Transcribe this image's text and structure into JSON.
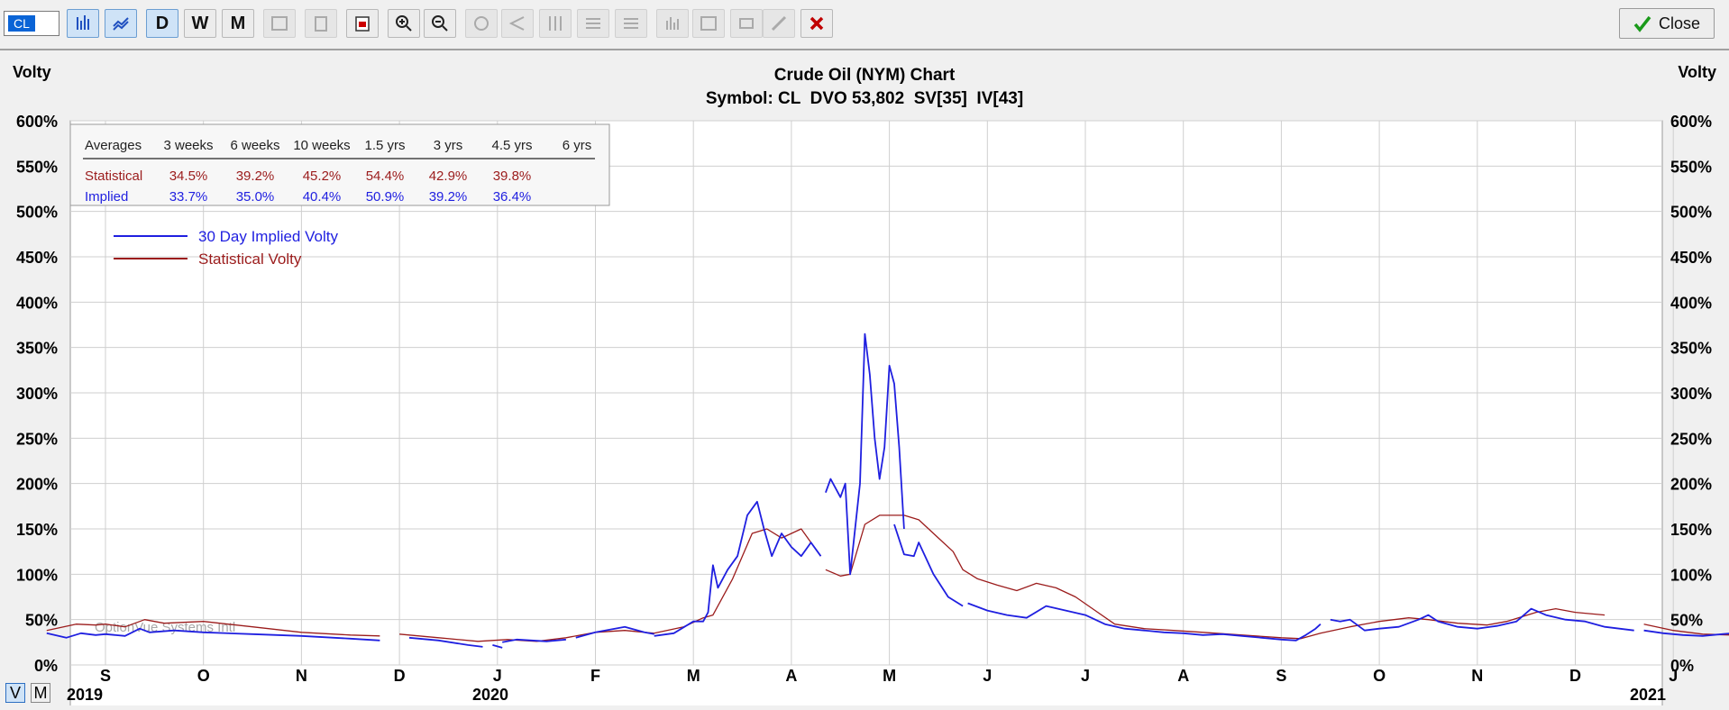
{
  "toolbar": {
    "symbol": "CL",
    "period_buttons": [
      "D",
      "W",
      "M"
    ],
    "close_label": "Close"
  },
  "chart_data": {
    "type": "line",
    "title": "Crude Oil (NYM) Chart",
    "subtitle": "Symbol: CL  DVO 53,802  SV[35]  IV[43]",
    "ylabel_left": "Volty",
    "ylabel_right": "Volty",
    "ylim": [
      0,
      600
    ],
    "y_ticks": [
      "0%",
      "50%",
      "100%",
      "150%",
      "200%",
      "250%",
      "300%",
      "350%",
      "400%",
      "450%",
      "500%",
      "550%",
      "600%"
    ],
    "x_month_labels": [
      "S",
      "O",
      "N",
      "D",
      "J",
      "F",
      "M",
      "A",
      "M",
      "J",
      "J",
      "A",
      "S",
      "O",
      "N",
      "D",
      "J"
    ],
    "x_year_labels": [
      "2019",
      "2020",
      "2021"
    ],
    "grid": true,
    "legend_placement": "top-left",
    "watermark": "OptionVue Systems Intl",
    "averages_table": {
      "headers": [
        "Averages",
        "3 weeks",
        "6 weeks",
        "10 weeks",
        "1.5 yrs",
        "3 yrs",
        "4.5 yrs",
        "6 yrs"
      ],
      "rows": [
        {
          "label": "Statistical",
          "values": [
            "34.5%",
            "39.2%",
            "45.2%",
            "54.4%",
            "42.9%",
            "39.8%",
            ""
          ],
          "color": "#9b1c1c"
        },
        {
          "label": "Implied",
          "values": [
            "33.7%",
            "35.0%",
            "40.4%",
            "50.9%",
            "39.2%",
            "36.4%",
            ""
          ],
          "color": "#1f1fe0"
        }
      ]
    },
    "series": [
      {
        "name": "30 Day Implied Volty",
        "color": "#1f1fe0",
        "segments": [
          [
            [
              -0.6,
              35
            ],
            [
              -0.4,
              30
            ],
            [
              -0.25,
              35
            ],
            [
              -0.1,
              33
            ],
            [
              0,
              34
            ],
            [
              0.2,
              32
            ],
            [
              0.35,
              40
            ],
            [
              0.45,
              36
            ],
            [
              0.7,
              38
            ],
            [
              1,
              36
            ],
            [
              1.5,
              34
            ],
            [
              2,
              32
            ],
            [
              2.5,
              29
            ],
            [
              2.8,
              27
            ]
          ],
          [
            [
              3.1,
              30
            ],
            [
              3.4,
              27
            ],
            [
              3.7,
              22
            ],
            [
              3.85,
              20
            ]
          ],
          [
            [
              3.95,
              22
            ],
            [
              4.05,
              19
            ]
          ],
          [
            [
              4.05,
              25
            ],
            [
              4.2,
              28
            ],
            [
              4.5,
              26
            ],
            [
              4.7,
              28
            ]
          ],
          [
            [
              4.8,
              30
            ],
            [
              5.0,
              36
            ],
            [
              5.2,
              40
            ],
            [
              5.3,
              42
            ],
            [
              5.5,
              36
            ],
            [
              5.6,
              34
            ]
          ],
          [
            [
              5.6,
              32
            ],
            [
              5.8,
              35
            ],
            [
              6.0,
              48
            ],
            [
              6.1,
              48
            ],
            [
              6.15,
              58
            ],
            [
              6.2,
              110
            ],
            [
              6.25,
              85
            ],
            [
              6.35,
              105
            ],
            [
              6.45,
              120
            ],
            [
              6.55,
              165
            ],
            [
              6.65,
              180
            ],
            [
              6.72,
              150
            ],
            [
              6.8,
              120
            ],
            [
              6.9,
              145
            ],
            [
              7.0,
              130
            ],
            [
              7.1,
              120
            ],
            [
              7.2,
              135
            ],
            [
              7.3,
              120
            ]
          ],
          [
            [
              7.35,
              190
            ],
            [
              7.4,
              205
            ],
            [
              7.5,
              185
            ],
            [
              7.55,
              200
            ],
            [
              7.6,
              100
            ],
            [
              7.7,
              200
            ],
            [
              7.75,
              365
            ],
            [
              7.8,
              320
            ],
            [
              7.85,
              250
            ],
            [
              7.9,
              205
            ],
            [
              7.95,
              240
            ],
            [
              8.0,
              330
            ],
            [
              8.05,
              310
            ],
            [
              8.1,
              240
            ],
            [
              8.15,
              150
            ]
          ],
          [
            [
              8.05,
              155
            ],
            [
              8.15,
              122
            ],
            [
              8.25,
              120
            ],
            [
              8.3,
              135
            ],
            [
              8.45,
              100
            ],
            [
              8.6,
              75
            ],
            [
              8.75,
              65
            ]
          ],
          [
            [
              8.8,
              68
            ],
            [
              9.0,
              60
            ],
            [
              9.2,
              55
            ],
            [
              9.4,
              52
            ],
            [
              9.6,
              65
            ],
            [
              9.8,
              60
            ],
            [
              10.0,
              55
            ],
            [
              10.2,
              45
            ],
            [
              10.4,
              40
            ],
            [
              10.6,
              38
            ],
            [
              10.8,
              36
            ],
            [
              11.0,
              35
            ],
            [
              11.2,
              33
            ],
            [
              11.4,
              34
            ],
            [
              11.6,
              32
            ],
            [
              11.8,
              30
            ],
            [
              12.0,
              28
            ],
            [
              12.15,
              27
            ],
            [
              12.25,
              33
            ],
            [
              12.35,
              40
            ],
            [
              12.4,
              45
            ]
          ],
          [
            [
              12.5,
              50
            ],
            [
              12.6,
              48
            ],
            [
              12.7,
              50
            ],
            [
              12.85,
              38
            ],
            [
              13.0,
              40
            ],
            [
              13.2,
              42
            ],
            [
              13.4,
              50
            ],
            [
              13.5,
              55
            ],
            [
              13.6,
              48
            ],
            [
              13.8,
              42
            ],
            [
              14.0,
              40
            ],
            [
              14.2,
              43
            ],
            [
              14.4,
              48
            ],
            [
              14.55,
              62
            ],
            [
              14.7,
              55
            ],
            [
              14.9,
              50
            ],
            [
              15.1,
              48
            ],
            [
              15.3,
              42
            ],
            [
              15.6,
              38
            ]
          ],
          [
            [
              15.7,
              38
            ],
            [
              15.9,
              35
            ],
            [
              16.1,
              33
            ],
            [
              16.3,
              32
            ],
            [
              16.5,
              34
            ],
            [
              16.7,
              36
            ],
            [
              16.85,
              35
            ]
          ],
          [
            [
              16.9,
              33
            ],
            [
              17.0,
              32
            ]
          ]
        ]
      },
      {
        "name": "Statistical Volty",
        "color": "#9b1c1c",
        "segments": [
          [
            [
              -0.6,
              38
            ],
            [
              -0.3,
              45
            ],
            [
              -0.1,
              44
            ],
            [
              0,
              45
            ],
            [
              0.2,
              42
            ],
            [
              0.4,
              50
            ],
            [
              0.6,
              46
            ],
            [
              1.0,
              48
            ],
            [
              1.5,
              42
            ],
            [
              2.0,
              36
            ],
            [
              2.5,
              33
            ],
            [
              2.8,
              32
            ]
          ],
          [
            [
              3.0,
              34
            ],
            [
              3.4,
              30
            ],
            [
              3.8,
              26
            ],
            [
              4.1,
              28
            ],
            [
              4.4,
              26
            ],
            [
              4.7,
              30
            ],
            [
              5.0,
              36
            ],
            [
              5.3,
              38
            ],
            [
              5.6,
              35
            ],
            [
              5.9,
              42
            ],
            [
              6.1,
              52
            ],
            [
              6.2,
              55
            ],
            [
              6.4,
              95
            ],
            [
              6.6,
              145
            ],
            [
              6.75,
              150
            ],
            [
              6.9,
              140
            ],
            [
              7.1,
              150
            ],
            [
              7.3,
              120
            ]
          ],
          [
            [
              7.35,
              105
            ],
            [
              7.5,
              98
            ],
            [
              7.6,
              100
            ],
            [
              7.75,
              155
            ],
            [
              7.9,
              165
            ],
            [
              8.15,
              165
            ]
          ],
          [
            [
              8.15,
              165
            ],
            [
              8.3,
              160
            ],
            [
              8.5,
              140
            ],
            [
              8.65,
              125
            ],
            [
              8.75,
              105
            ],
            [
              8.9,
              95
            ],
            [
              9.1,
              88
            ],
            [
              9.3,
              82
            ],
            [
              9.5,
              90
            ],
            [
              9.7,
              85
            ],
            [
              9.9,
              75
            ],
            [
              10.1,
              60
            ],
            [
              10.3,
              45
            ],
            [
              10.6,
              40
            ],
            [
              10.9,
              38
            ],
            [
              11.2,
              36
            ],
            [
              11.6,
              33
            ],
            [
              12.0,
              30
            ],
            [
              12.2,
              29
            ],
            [
              12.4,
              35
            ],
            [
              12.7,
              42
            ],
            [
              13.0,
              48
            ],
            [
              13.3,
              52
            ],
            [
              13.5,
              50
            ],
            [
              13.8,
              46
            ],
            [
              14.1,
              44
            ],
            [
              14.3,
              48
            ],
            [
              14.6,
              58
            ],
            [
              14.8,
              62
            ],
            [
              15.0,
              58
            ],
            [
              15.3,
              55
            ]
          ],
          [
            [
              15.7,
              45
            ],
            [
              16.0,
              38
            ],
            [
              16.3,
              34
            ],
            [
              16.6,
              33
            ],
            [
              16.85,
              33
            ]
          ]
        ]
      }
    ],
    "current_date_marker_x": 16.92
  }
}
